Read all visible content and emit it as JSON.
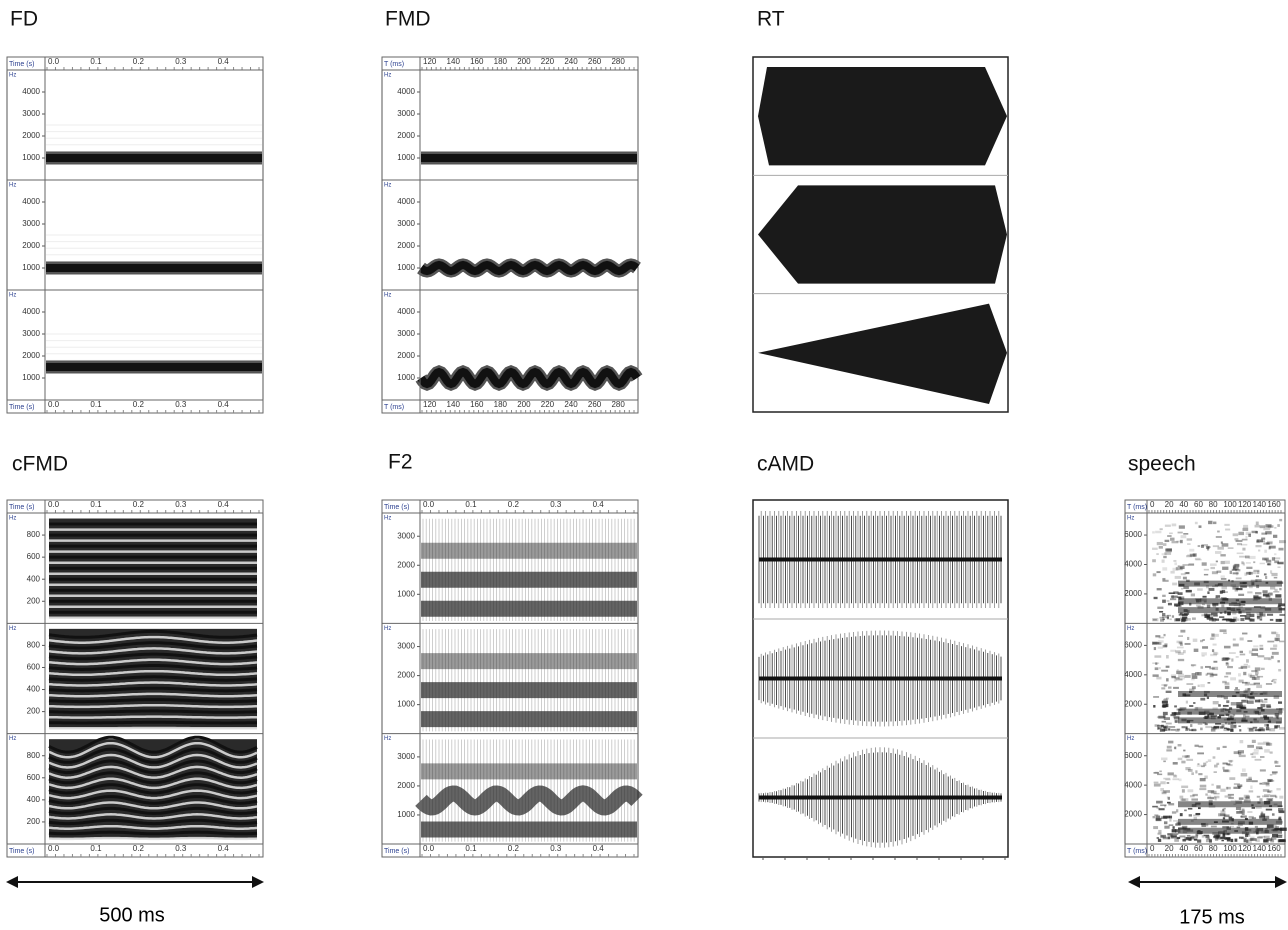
{
  "panels": {
    "FD": {
      "title": "FD",
      "time_label": "Time (s)",
      "freq_label": "Hz",
      "time_ticks": [
        "0.0",
        "0.1",
        "0.2",
        "0.3",
        "0.4"
      ],
      "freq_ticks": [
        "1000",
        "2000",
        "3000",
        "4000"
      ]
    },
    "FMD": {
      "title": "FMD",
      "time_label": "T (ms)",
      "freq_label": "Hz",
      "time_ticks": [
        "120",
        "140",
        "160",
        "180",
        "200",
        "220",
        "240",
        "260",
        "280"
      ],
      "freq_ticks": [
        "1000",
        "2000",
        "3000",
        "4000"
      ]
    },
    "RT": {
      "title": "RT"
    },
    "cFMD": {
      "title": "cFMD",
      "time_label": "Time (s)",
      "freq_label": "Hz",
      "time_ticks": [
        "0.0",
        "0.1",
        "0.2",
        "0.3",
        "0.4"
      ],
      "freq_ticks": [
        "200",
        "400",
        "600",
        "800"
      ]
    },
    "F2": {
      "title": "F2",
      "time_label": "Time (s)",
      "freq_label": "Hz",
      "time_ticks": [
        "0.0",
        "0.1",
        "0.2",
        "0.3",
        "0.4"
      ],
      "freq_ticks": [
        "1000",
        "2000",
        "3000"
      ]
    },
    "cAMD": {
      "title": "cAMD"
    },
    "speech": {
      "title": "speech",
      "time_label": "T (ms)",
      "freq_label": "Hz",
      "time_ticks": [
        "0",
        "20",
        "40",
        "60",
        "80",
        "100",
        "120",
        "140",
        "160"
      ],
      "freq_ticks": [
        "2000",
        "4000",
        "6000"
      ]
    }
  },
  "scale_bars": {
    "left": "500 ms",
    "right": "175 ms"
  }
}
